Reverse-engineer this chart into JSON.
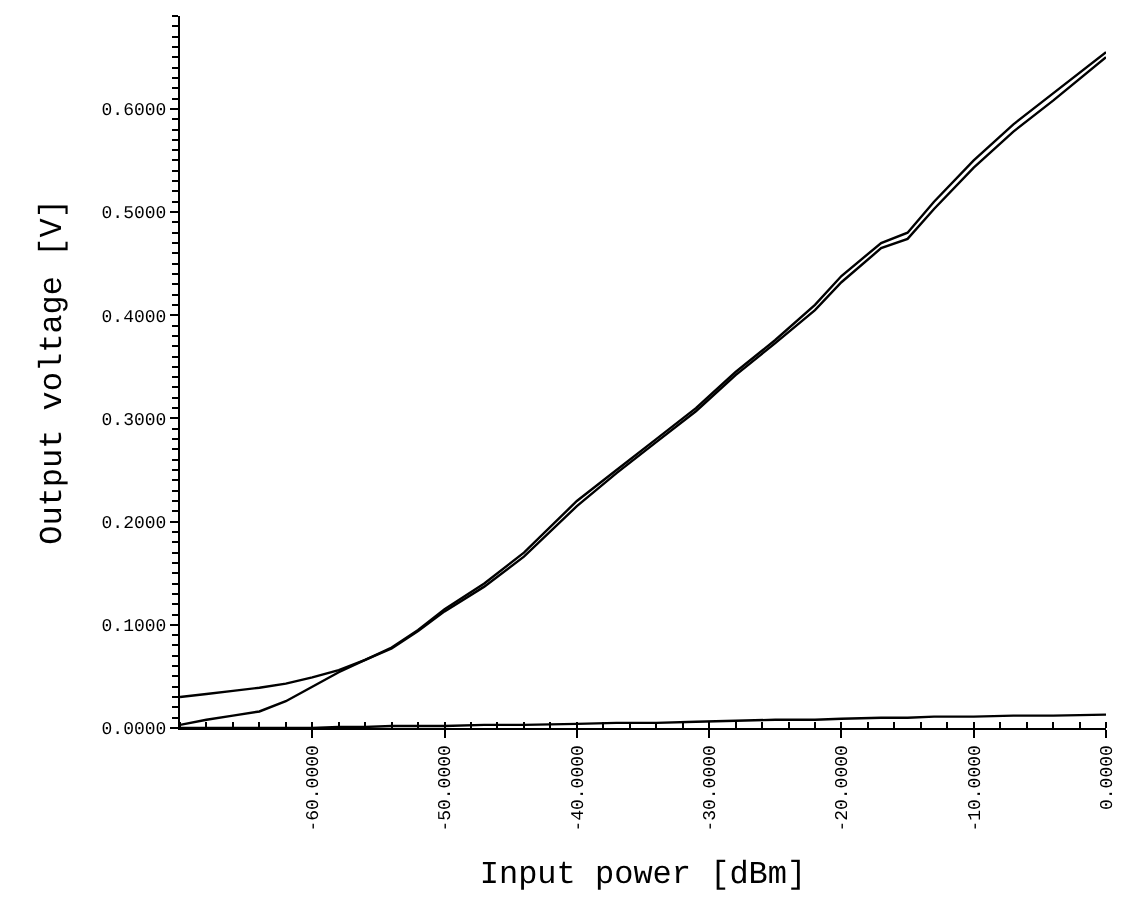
{
  "chart_data": {
    "type": "line",
    "xlabel": "Input power [dBm]",
    "ylabel": "Output voltage [V]",
    "x": [
      -70,
      -68,
      -66,
      -64,
      -62,
      -60,
      -58,
      -56,
      -54,
      -52,
      -50,
      -47,
      -44,
      -40,
      -37,
      -34,
      -31,
      -28,
      -25,
      -22,
      -20,
      -17,
      -15,
      -13,
      -10,
      -7,
      -4,
      0
    ],
    "series": [
      {
        "color": "#000000",
        "values": [
          0.03,
          0.033,
          0.036,
          0.039,
          0.043,
          0.049,
          0.056,
          0.066,
          0.078,
          0.095,
          0.115,
          0.14,
          0.17,
          0.22,
          0.25,
          0.28,
          0.31,
          0.345,
          0.376,
          0.41,
          0.438,
          0.47,
          0.48,
          0.51,
          0.55,
          0.585,
          0.615,
          0.655
        ]
      },
      {
        "color": "#000000",
        "values": [
          0.003,
          0.008,
          0.012,
          0.016,
          0.026,
          0.04,
          0.054,
          0.066,
          0.077,
          0.094,
          0.113,
          0.137,
          0.166,
          0.215,
          0.247,
          0.277,
          0.307,
          0.342,
          0.373,
          0.405,
          0.432,
          0.465,
          0.474,
          0.503,
          0.543,
          0.578,
          0.608,
          0.65
        ]
      },
      {
        "color": "#000000",
        "values": [
          0.0,
          0.0,
          0.0,
          0.0,
          0.0,
          0.0,
          0.001,
          0.001,
          0.002,
          0.002,
          0.002,
          0.003,
          0.003,
          0.004,
          0.005,
          0.005,
          0.006,
          0.007,
          0.008,
          0.008,
          0.009,
          0.01,
          0.01,
          0.011,
          0.011,
          0.012,
          0.012,
          0.013
        ]
      }
    ],
    "xlim": [
      -70,
      0
    ],
    "ylim": [
      0,
      0.69
    ],
    "xticks": [
      {
        "value": -60,
        "label": "-60.0000"
      },
      {
        "value": -50,
        "label": "-50.0000"
      },
      {
        "value": -40,
        "label": "-40.0000"
      },
      {
        "value": -30,
        "label": "-30.0000"
      },
      {
        "value": -20,
        "label": "-20.0000"
      },
      {
        "value": -10,
        "label": "-10.0000"
      },
      {
        "value": 0,
        "label": "0.0000"
      }
    ],
    "yticks": [
      {
        "value": 0,
        "label": "0.0000"
      },
      {
        "value": 0.1,
        "label": "0.1000"
      },
      {
        "value": 0.2,
        "label": "0.2000"
      },
      {
        "value": 0.3,
        "label": "0.3000"
      },
      {
        "value": 0.4,
        "label": "0.4000"
      },
      {
        "value": 0.5,
        "label": "0.5000"
      },
      {
        "value": 0.6,
        "label": "0.6000"
      }
    ],
    "marker": "none",
    "line_style": "solid"
  }
}
